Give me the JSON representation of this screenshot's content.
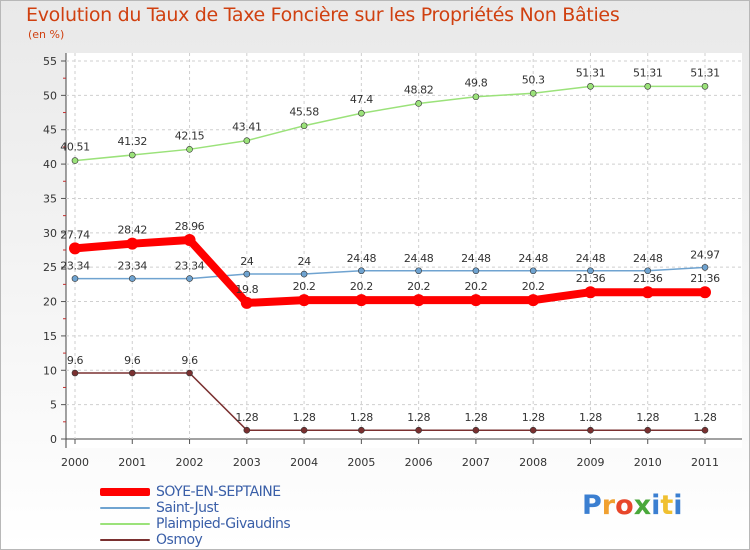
{
  "header": {
    "title": "Evolution du Taux de Taxe Foncière sur les Propriétés Non Bâties",
    "subtitle": "(en %)"
  },
  "logo": {
    "text": "Proxiti"
  },
  "chart_data": {
    "type": "line",
    "title": "Evolution du Taux de Taxe Foncière sur les Propriétés Non Bâties",
    "subtitle": "(en %)",
    "x": [
      "2000",
      "2001",
      "2002",
      "2003",
      "2004",
      "2005",
      "2006",
      "2007",
      "2008",
      "2009",
      "2010",
      "2011"
    ],
    "ylim": [
      0,
      55
    ],
    "yticks": [
      "0",
      "5",
      "10",
      "15",
      "20",
      "25",
      "30",
      "35",
      "40",
      "45",
      "50",
      "55"
    ],
    "grid": true,
    "legend_position": "bottom-left",
    "series": [
      {
        "name": "SOYE-EN-SEPTAINE",
        "color": "#ff0000",
        "values": [
          27.74,
          28.42,
          28.96,
          19.8,
          20.2,
          20.2,
          20.2,
          20.2,
          20.2,
          21.36,
          21.36,
          21.36
        ],
        "labels": [
          "27.74",
          "28.42",
          "28.96",
          "19.8",
          "20.2",
          "20.2",
          "20.2",
          "20.2",
          "20.2",
          "21.36",
          "21.36",
          "21.36"
        ]
      },
      {
        "name": "Saint-Just",
        "color": "#6fa3d0",
        "values": [
          23.34,
          23.34,
          23.34,
          24,
          24,
          24.48,
          24.48,
          24.48,
          24.48,
          24.48,
          24.48,
          24.97
        ],
        "labels": [
          "23.34",
          "23.34",
          "23.34",
          "24",
          "24",
          "24.48",
          "24.48",
          "24.48",
          "24.48",
          "24.48",
          "24.48",
          "24.97"
        ]
      },
      {
        "name": "Plaimpied-Givaudins",
        "color": "#9be27a",
        "values": [
          40.51,
          41.32,
          42.15,
          43.41,
          45.58,
          47.4,
          48.82,
          49.8,
          50.3,
          51.31,
          51.31,
          51.31
        ],
        "labels": [
          "40.51",
          "41.32",
          "42.15",
          "43.41",
          "45.58",
          "47.4",
          "48.82",
          "49.8",
          "50.3",
          "51.31",
          "51.31",
          "51.31"
        ]
      },
      {
        "name": "Osmoy",
        "color": "#7a3030",
        "values": [
          9.6,
          9.6,
          9.6,
          1.28,
          1.28,
          1.28,
          1.28,
          1.28,
          1.28,
          1.28,
          1.28,
          1.28
        ],
        "labels": [
          "9.6",
          "9.6",
          "9.6",
          "1.28",
          "1.28",
          "1.28",
          "1.28",
          "1.28",
          "1.28",
          "1.28",
          "1.28",
          "1.28"
        ]
      }
    ]
  }
}
